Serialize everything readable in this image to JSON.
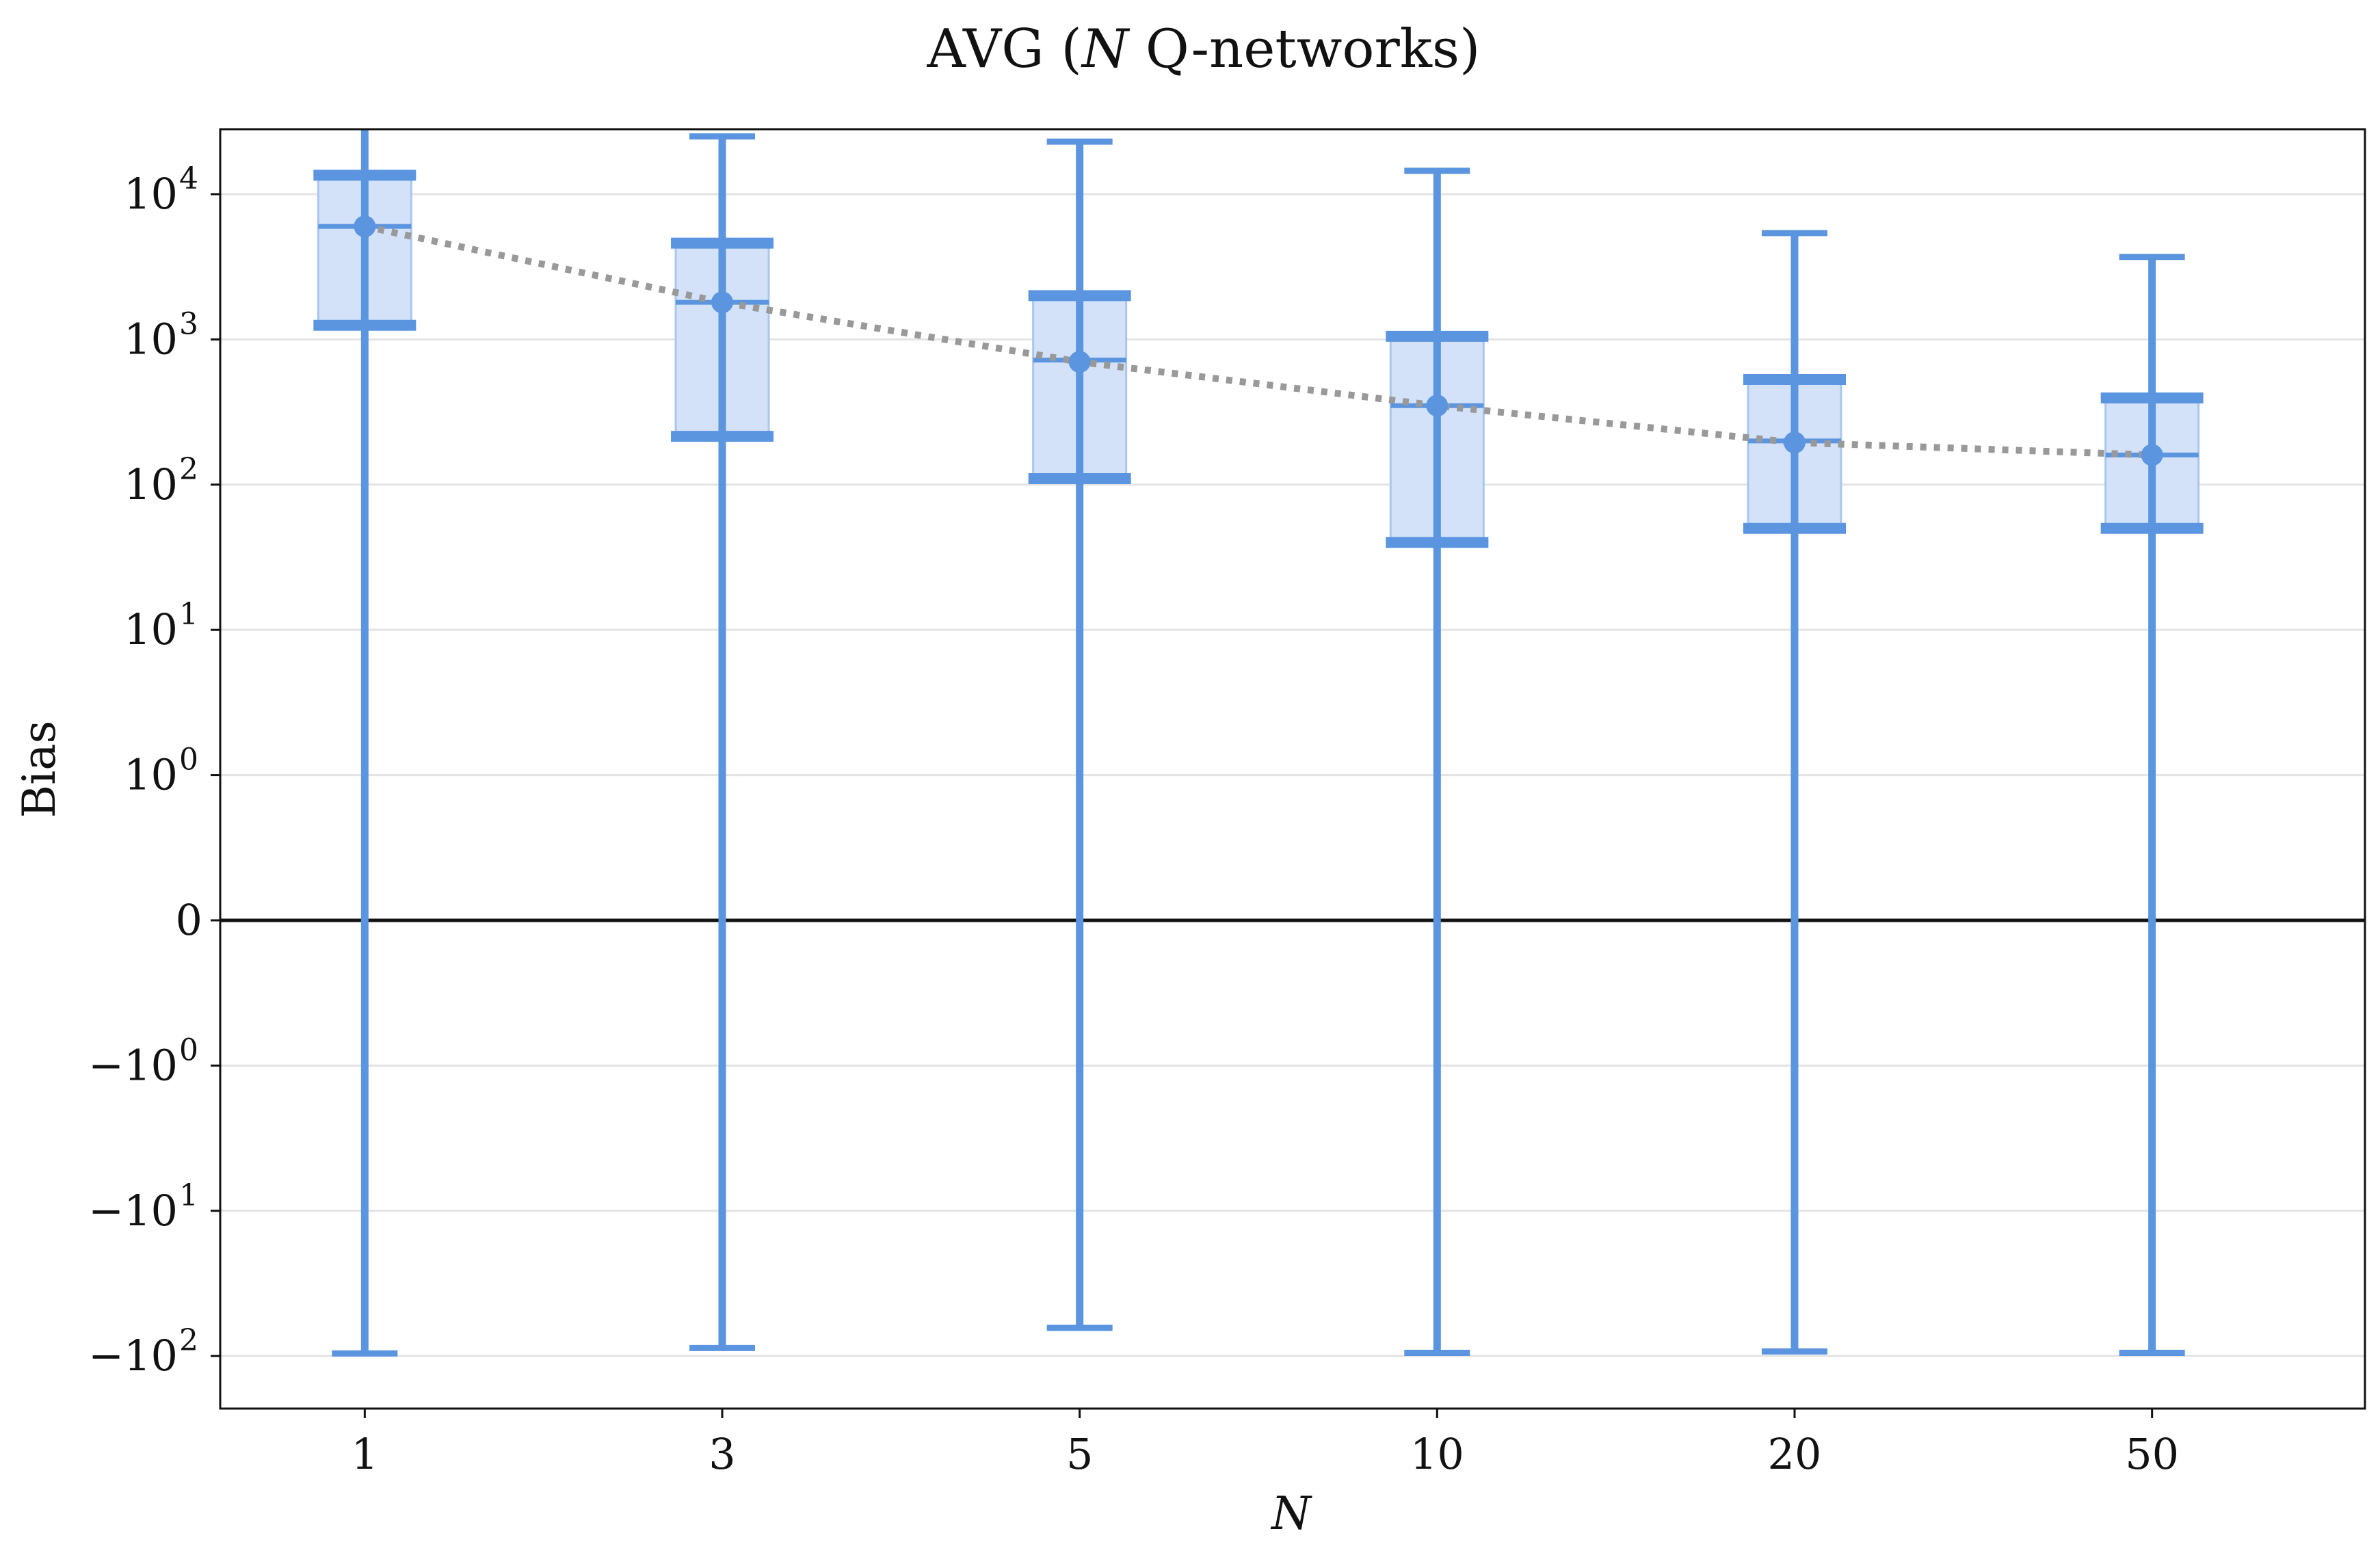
{
  "chart_data": {
    "type": "box",
    "title_parts": [
      "AVG (",
      "N",
      " Q-networks)"
    ],
    "xlabel": "N",
    "ylabel": "Bias",
    "yscale": "symlog",
    "categories": [
      "1",
      "3",
      "5",
      "10",
      "20",
      "50"
    ],
    "y_ticks": [
      {
        "value": 10000,
        "label_base": "10",
        "label_exp": "4"
      },
      {
        "value": 1000,
        "label_base": "10",
        "label_exp": "3"
      },
      {
        "value": 100,
        "label_base": "10",
        "label_exp": "2"
      },
      {
        "value": 10,
        "label_base": "10",
        "label_exp": "1"
      },
      {
        "value": 1,
        "label_base": "10",
        "label_exp": "0"
      },
      {
        "value": 0,
        "label_base": "0",
        "label_exp": ""
      },
      {
        "value": -1,
        "label_base": "−10",
        "label_exp": "0"
      },
      {
        "value": -10,
        "label_base": "−10",
        "label_exp": "1"
      },
      {
        "value": -100,
        "label_base": "−10",
        "label_exp": "2"
      }
    ],
    "ylim": [
      -230,
      28000
    ],
    "zero_line": true,
    "grid": "horizontal",
    "colors": {
      "box_fill": "#d3e2f8",
      "box_edge": "#a9c6ee",
      "whisker": "#5b95e0",
      "mean_line": "#999999",
      "zero_line": "#111111"
    },
    "boxes": [
      {
        "category": "1",
        "whislo": -96,
        "q1": 1250,
        "median": 6000,
        "q3": 13500,
        "whishi": 30000,
        "mean": 6000
      },
      {
        "category": "3",
        "whislo": -88,
        "q1": 215,
        "median": 1800,
        "q3": 4600,
        "whishi": 25000,
        "mean": 1800
      },
      {
        "category": "5",
        "whislo": -64,
        "q1": 110,
        "median": 720,
        "q3": 2000,
        "whishi": 23000,
        "mean": 700
      },
      {
        "category": "10",
        "whislo": -95,
        "q1": 40,
        "median": 350,
        "q3": 1050,
        "whishi": 14500,
        "mean": 350
      },
      {
        "category": "20",
        "whislo": -93,
        "q1": 50,
        "median": 200,
        "q3": 530,
        "whishi": 5400,
        "mean": 195
      },
      {
        "category": "50",
        "whislo": -95,
        "q1": 50,
        "median": 160,
        "q3": 395,
        "whishi": 3700,
        "mean": 160
      }
    ]
  }
}
